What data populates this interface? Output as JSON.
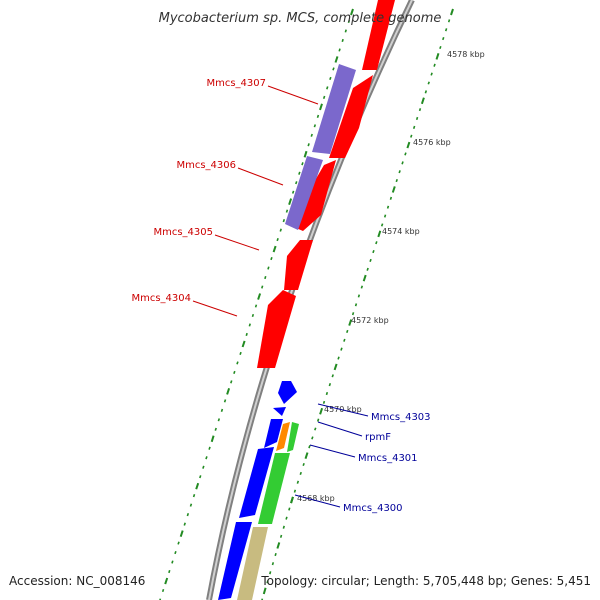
{
  "title": "Mycobacterium sp. MCS, complete genome",
  "footer": {
    "accession": "Accession: NC_008146",
    "summary": "Topology: circular; Length: 5,705,448 bp; Genes: 5,451"
  },
  "kbp_labels": [
    "4578 kbp",
    "4576 kbp",
    "4574 kbp",
    "4572 kbp",
    "4570 kbp",
    "4568 kbp"
  ],
  "gene_labels": {
    "reverse": [
      "Mmcs_4307",
      "Mmcs_4306",
      "Mmcs_4305",
      "Mmcs_4304"
    ],
    "forward": [
      "Mmcs_4303",
      "rpmF",
      "Mmcs_4301",
      "Mmcs_4300"
    ]
  },
  "colors": {
    "reverse_label": "#cc0000",
    "forward_label": "#000099",
    "red_gene": "#ff0000",
    "purple_gene": "#7b68cc",
    "blue_gene": "#0000ff",
    "green_gene": "#33cc33",
    "orange_gene": "#ff8800",
    "khaki_gene": "#c8bb80",
    "backbone": "#888888",
    "tick": "#228b22"
  }
}
